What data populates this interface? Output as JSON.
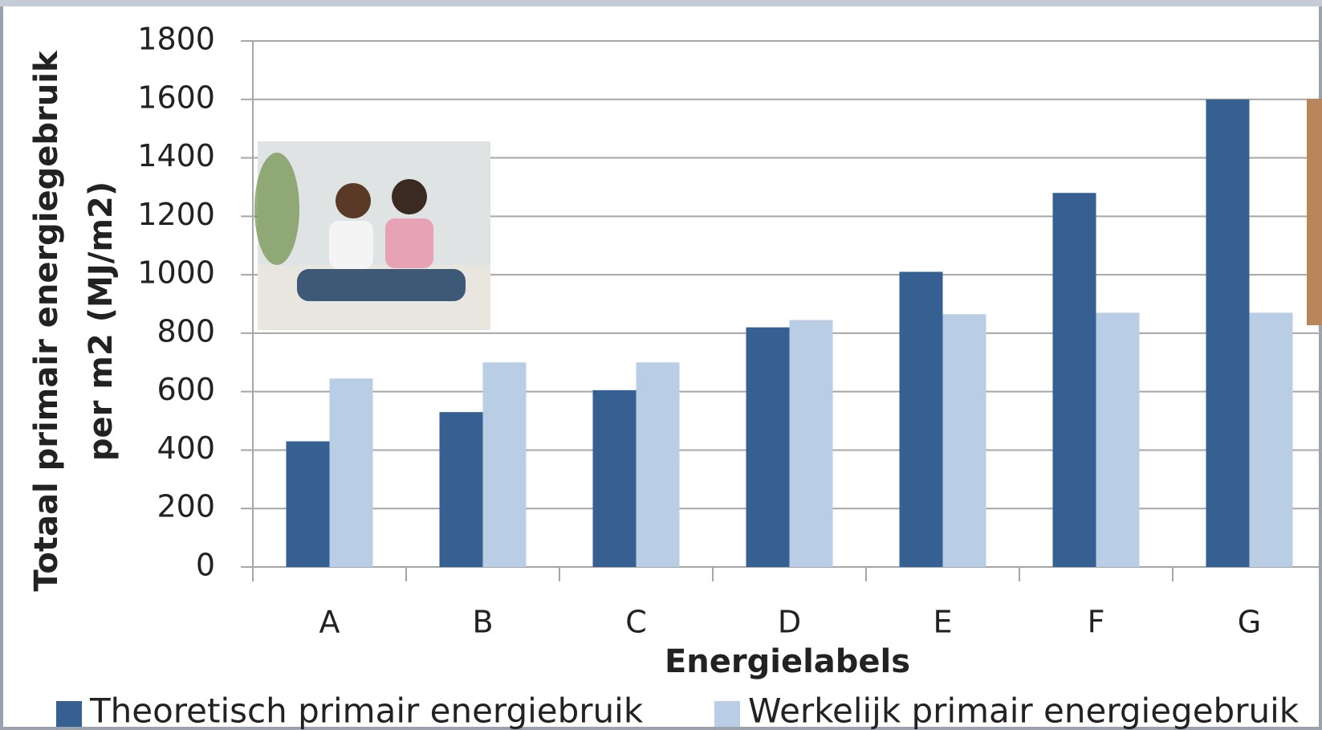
{
  "chart_data": {
    "type": "bar",
    "x_label": "Energielabels",
    "y_label": [
      "Totaal primair energiegebruik",
      "per m2 (MJ/m2)"
    ],
    "categories": [
      "A",
      "B",
      "C",
      "D",
      "E",
      "F",
      "G"
    ],
    "series": [
      {
        "name": "Theoretisch primair energiebruik",
        "color": "#376092",
        "values": [
          430,
          530,
          605,
          820,
          1010,
          1280,
          1600
        ]
      },
      {
        "name": "Werkelijk primair energiegebruik",
        "color": "#b9cde5",
        "values": [
          645,
          700,
          700,
          845,
          865,
          870,
          870
        ]
      }
    ],
    "ylim": [
      0,
      1800
    ],
    "yticks": [
      0,
      200,
      400,
      600,
      800,
      1000,
      1200,
      1400,
      1600,
      1800
    ],
    "grid": true,
    "legend": "bottom"
  }
}
